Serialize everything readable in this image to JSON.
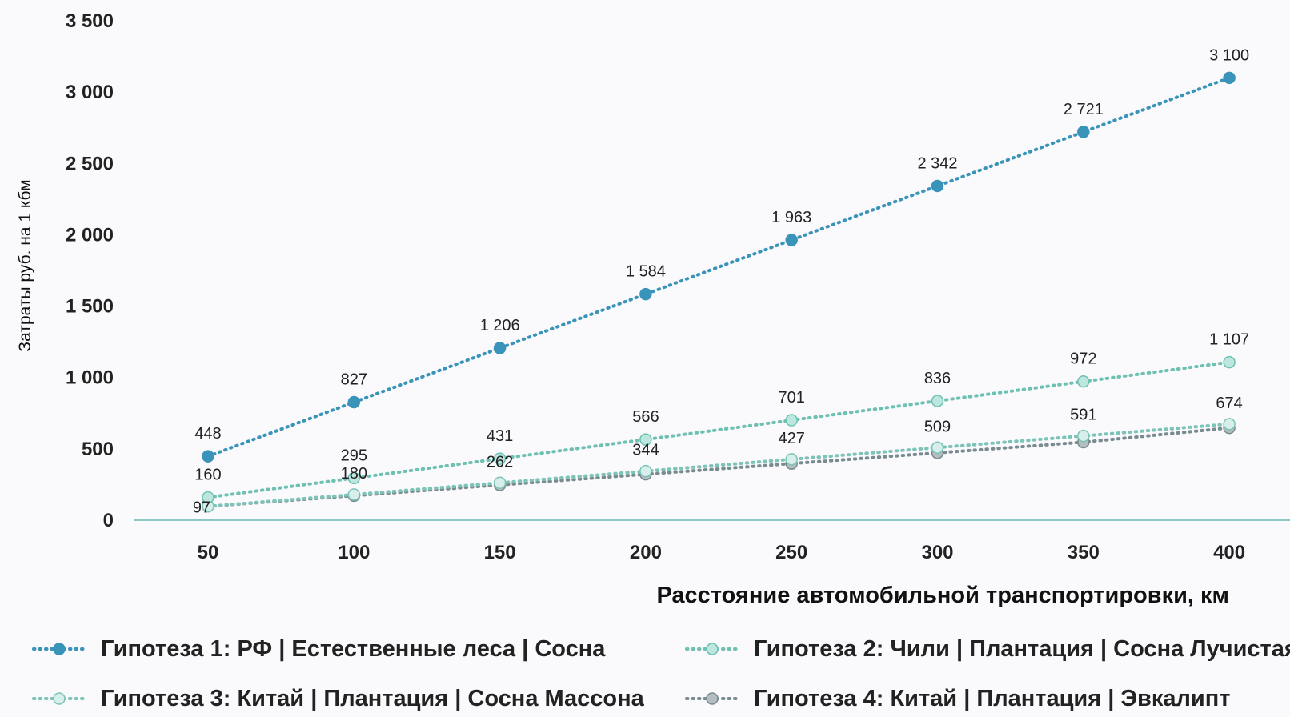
{
  "chart_data": {
    "type": "line",
    "xlabel": "Расстояние автомобильной транспортировки, км",
    "ylabel": "Затраты руб. на 1 кбм",
    "x": [
      50,
      100,
      150,
      200,
      250,
      300,
      350,
      400
    ],
    "x_tick_labels": [
      "50",
      "100",
      "150",
      "200",
      "250",
      "300",
      "350",
      "400"
    ],
    "ylim": [
      0,
      3500
    ],
    "y_ticks": [
      0,
      500,
      1000,
      1500,
      2000,
      2500,
      3000,
      3500
    ],
    "y_tick_labels": [
      "0",
      "500",
      "1 000",
      "1 500",
      "2 000",
      "2 500",
      "3 000",
      "3 500"
    ],
    "grid": false,
    "legend_position": "bottom",
    "series": [
      {
        "name": "Гипотеза 1: РФ | Естественные леса | Сосна",
        "color": "#3a93b8",
        "marker_fill": "#3a93b8",
        "values": [
          448,
          827,
          1206,
          1584,
          1963,
          2342,
          2721,
          3100
        ],
        "labels": [
          "448",
          "827",
          "1 206",
          "1 584",
          "1 963",
          "2 342",
          "2 721",
          "3 100"
        ],
        "show_labels": true
      },
      {
        "name": "Гипотеза 2: Чили | Плантация | Сосна Лучистая",
        "color": "#6dc0b2",
        "marker_fill": "#bde6df",
        "values": [
          160,
          295,
          431,
          566,
          701,
          836,
          972,
          1107
        ],
        "labels": [
          "160",
          "295",
          "431",
          "566",
          "701",
          "836",
          "972",
          "1 107"
        ],
        "show_labels": true
      },
      {
        "name": "Гипотеза 3: Китай | Плантация | Сосна Массона",
        "color": "#7dc3b7",
        "marker_fill": "#d7efea",
        "values": [
          97,
          180,
          262,
          344,
          427,
          509,
          591,
          674
        ],
        "labels": [
          "97",
          "180",
          "262",
          "344",
          "427",
          "509",
          "591",
          "674"
        ],
        "show_labels": true
      },
      {
        "name": "Гипотеза 4: Китай | Плантация | Эвкалипт",
        "color": "#7a8b90",
        "marker_fill": "#b4bec1",
        "values": [
          97,
          172,
          247,
          322,
          397,
          472,
          547,
          647
        ],
        "show_labels": false
      }
    ]
  },
  "legend": [
    {
      "label": "Гипотеза 1: РФ |  Естественные леса | Сосна"
    },
    {
      "label": "Гипотеза 2: Чили | Плантация | Сосна Лучистая"
    },
    {
      "label": "Гипотеза 3: Китай | Плантация | Сосна Массона"
    },
    {
      "label": "Гипотеза 4: Китай | Плантация | Эвкалипт"
    }
  ],
  "colors": {
    "background": "#fafafd",
    "axis_line": "#8cc9c4",
    "text": "#222222"
  }
}
